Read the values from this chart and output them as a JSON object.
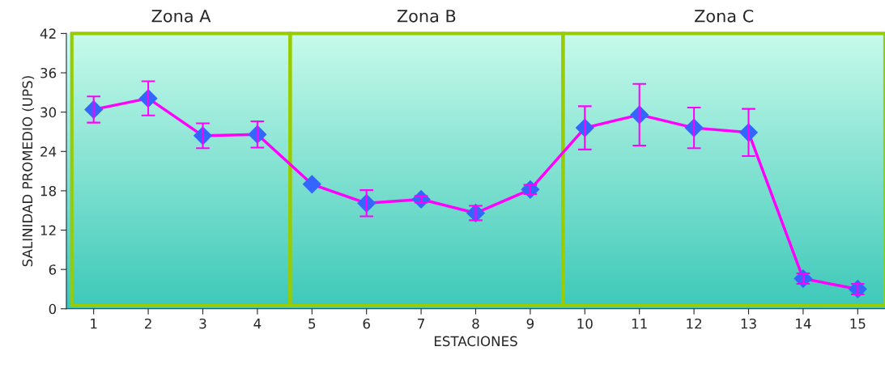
{
  "chart_data": {
    "type": "line",
    "xlabel": "ESTACIONES",
    "ylabel": "SALINIDAD PROMEDIO (UPS)",
    "x": [
      1,
      2,
      3,
      4,
      5,
      6,
      7,
      8,
      9,
      10,
      11,
      12,
      13,
      14,
      15
    ],
    "series": [
      {
        "color": "#ff00ff",
        "values": [
          30.4,
          32.1,
          26.4,
          26.6,
          19.0,
          16.1,
          16.7,
          14.6,
          18.2,
          27.6,
          29.6,
          27.6,
          26.9,
          4.6,
          3.0
        ],
        "errors": [
          2.0,
          2.6,
          1.9,
          2.0,
          null,
          2.0,
          0.5,
          1.1,
          0.7,
          3.3,
          4.7,
          3.1,
          3.6,
          0.8,
          0.8
        ]
      }
    ],
    "marker": "diamond",
    "line_style": "solid",
    "grid": false,
    "legend": false,
    "xlim": [
      0.5,
      15.5
    ],
    "xticks": [
      1,
      2,
      3,
      4,
      5,
      6,
      7,
      8,
      9,
      10,
      11,
      12,
      13,
      14,
      15
    ],
    "ylim": [
      0,
      42
    ],
    "yticks": [
      0,
      6,
      12,
      18,
      24,
      30,
      36,
      42
    ],
    "bands": [
      {
        "axis": "x",
        "from": 0.6,
        "to": 4.6,
        "label": "Zona A",
        "color": "#99cc00"
      },
      {
        "axis": "x",
        "from": 4.6,
        "to": 9.6,
        "label": "Zona B",
        "color": "#99cc00"
      },
      {
        "axis": "x",
        "from": 9.6,
        "to": 15.5,
        "label": "Zona C",
        "color": "#99cc00"
      }
    ]
  }
}
